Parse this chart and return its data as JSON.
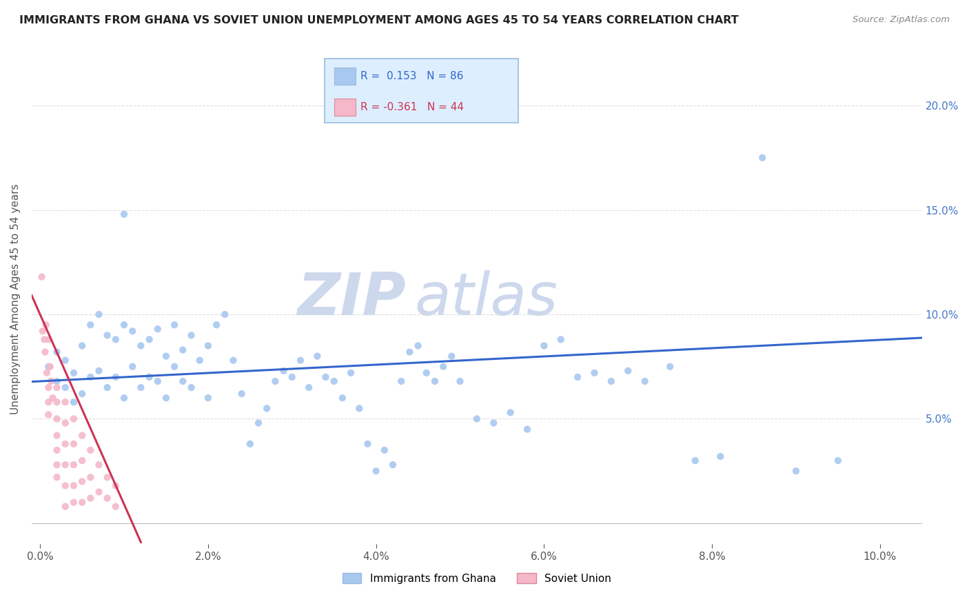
{
  "title": "IMMIGRANTS FROM GHANA VS SOVIET UNION UNEMPLOYMENT AMONG AGES 45 TO 54 YEARS CORRELATION CHART",
  "source": "Source: ZipAtlas.com",
  "ylabel": "Unemployment Among Ages 45 to 54 years",
  "ghana_R": 0.153,
  "ghana_N": 86,
  "soviet_R": -0.361,
  "soviet_N": 44,
  "ghana_color": "#a8c8f0",
  "soviet_color": "#f4b8c8",
  "ghana_line_color": "#3366cc",
  "soviet_line_color": "#cc3355",
  "ghana_scatter": [
    [
      0.001,
      0.075
    ],
    [
      0.002,
      0.068
    ],
    [
      0.002,
      0.082
    ],
    [
      0.003,
      0.065
    ],
    [
      0.003,
      0.078
    ],
    [
      0.004,
      0.072
    ],
    [
      0.004,
      0.058
    ],
    [
      0.005,
      0.085
    ],
    [
      0.005,
      0.062
    ],
    [
      0.006,
      0.095
    ],
    [
      0.006,
      0.07
    ],
    [
      0.007,
      0.1
    ],
    [
      0.007,
      0.073
    ],
    [
      0.008,
      0.09
    ],
    [
      0.008,
      0.065
    ],
    [
      0.009,
      0.088
    ],
    [
      0.009,
      0.07
    ],
    [
      0.01,
      0.095
    ],
    [
      0.01,
      0.06
    ],
    [
      0.011,
      0.092
    ],
    [
      0.011,
      0.075
    ],
    [
      0.012,
      0.085
    ],
    [
      0.012,
      0.065
    ],
    [
      0.013,
      0.088
    ],
    [
      0.013,
      0.07
    ],
    [
      0.014,
      0.093
    ],
    [
      0.014,
      0.068
    ],
    [
      0.015,
      0.08
    ],
    [
      0.015,
      0.06
    ],
    [
      0.016,
      0.095
    ],
    [
      0.016,
      0.075
    ],
    [
      0.017,
      0.083
    ],
    [
      0.017,
      0.068
    ],
    [
      0.018,
      0.09
    ],
    [
      0.018,
      0.065
    ],
    [
      0.019,
      0.078
    ],
    [
      0.02,
      0.085
    ],
    [
      0.02,
      0.06
    ],
    [
      0.021,
      0.095
    ],
    [
      0.022,
      0.1
    ],
    [
      0.023,
      0.078
    ],
    [
      0.024,
      0.062
    ],
    [
      0.025,
      0.038
    ],
    [
      0.026,
      0.048
    ],
    [
      0.027,
      0.055
    ],
    [
      0.028,
      0.068
    ],
    [
      0.029,
      0.073
    ],
    [
      0.03,
      0.07
    ],
    [
      0.031,
      0.078
    ],
    [
      0.032,
      0.065
    ],
    [
      0.033,
      0.08
    ],
    [
      0.034,
      0.07
    ],
    [
      0.035,
      0.068
    ],
    [
      0.036,
      0.06
    ],
    [
      0.037,
      0.072
    ],
    [
      0.038,
      0.055
    ],
    [
      0.039,
      0.038
    ],
    [
      0.04,
      0.025
    ],
    [
      0.041,
      0.035
    ],
    [
      0.042,
      0.028
    ],
    [
      0.043,
      0.068
    ],
    [
      0.044,
      0.082
    ],
    [
      0.045,
      0.085
    ],
    [
      0.046,
      0.072
    ],
    [
      0.047,
      0.068
    ],
    [
      0.048,
      0.075
    ],
    [
      0.049,
      0.08
    ],
    [
      0.05,
      0.068
    ],
    [
      0.052,
      0.05
    ],
    [
      0.054,
      0.048
    ],
    [
      0.056,
      0.053
    ],
    [
      0.058,
      0.045
    ],
    [
      0.06,
      0.085
    ],
    [
      0.062,
      0.088
    ],
    [
      0.064,
      0.07
    ],
    [
      0.066,
      0.072
    ],
    [
      0.068,
      0.068
    ],
    [
      0.07,
      0.073
    ],
    [
      0.072,
      0.068
    ],
    [
      0.075,
      0.075
    ],
    [
      0.078,
      0.03
    ],
    [
      0.081,
      0.032
    ],
    [
      0.086,
      0.175
    ],
    [
      0.09,
      0.025
    ],
    [
      0.095,
      0.03
    ],
    [
      0.01,
      0.148
    ]
  ],
  "soviet_scatter": [
    [
      0.0002,
      0.118
    ],
    [
      0.0003,
      0.092
    ],
    [
      0.0005,
      0.088
    ],
    [
      0.0006,
      0.082
    ],
    [
      0.0007,
      0.095
    ],
    [
      0.0008,
      0.072
    ],
    [
      0.001,
      0.088
    ],
    [
      0.001,
      0.065
    ],
    [
      0.001,
      0.058
    ],
    [
      0.001,
      0.052
    ],
    [
      0.0012,
      0.075
    ],
    [
      0.0013,
      0.068
    ],
    [
      0.0015,
      0.06
    ],
    [
      0.002,
      0.065
    ],
    [
      0.002,
      0.058
    ],
    [
      0.002,
      0.05
    ],
    [
      0.002,
      0.042
    ],
    [
      0.002,
      0.035
    ],
    [
      0.002,
      0.028
    ],
    [
      0.002,
      0.022
    ],
    [
      0.003,
      0.058
    ],
    [
      0.003,
      0.048
    ],
    [
      0.003,
      0.038
    ],
    [
      0.003,
      0.028
    ],
    [
      0.003,
      0.018
    ],
    [
      0.003,
      0.008
    ],
    [
      0.004,
      0.05
    ],
    [
      0.004,
      0.038
    ],
    [
      0.004,
      0.028
    ],
    [
      0.004,
      0.018
    ],
    [
      0.004,
      0.01
    ],
    [
      0.005,
      0.042
    ],
    [
      0.005,
      0.03
    ],
    [
      0.005,
      0.02
    ],
    [
      0.005,
      0.01
    ],
    [
      0.006,
      0.035
    ],
    [
      0.006,
      0.022
    ],
    [
      0.006,
      0.012
    ],
    [
      0.007,
      0.028
    ],
    [
      0.007,
      0.015
    ],
    [
      0.008,
      0.022
    ],
    [
      0.008,
      0.012
    ],
    [
      0.009,
      0.018
    ],
    [
      0.009,
      0.008
    ]
  ],
  "xlim": [
    -0.001,
    0.105
  ],
  "ylim": [
    -0.01,
    0.225
  ],
  "xticks": [
    0.0,
    0.02,
    0.04,
    0.06,
    0.08,
    0.1
  ],
  "yticks": [
    0.0,
    0.05,
    0.1,
    0.15,
    0.2
  ],
  "xticklabels": [
    "0.0%",
    "2.0%",
    "4.0%",
    "6.0%",
    "8.0%",
    "10.0%"
  ],
  "yticklabels_right": [
    "",
    "5.0%",
    "10.0%",
    "15.0%",
    "20.0%"
  ],
  "background_color": "#ffffff",
  "grid_color": "#dddddd",
  "watermark_color": "#cdd8ec",
  "legend_box_color": "#ddeeff",
  "legend_border_color": "#99bbdd",
  "tick_color": "#4477cc",
  "axis_label_color": "#555555"
}
